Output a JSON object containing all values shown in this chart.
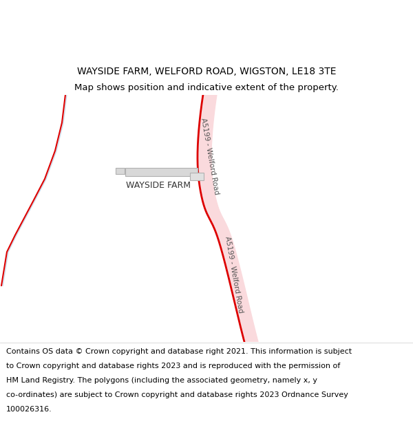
{
  "title_line1": "WAYSIDE FARM, WELFORD ROAD, WIGSTON, LE18 3TE",
  "title_line2": "Map shows position and indicative extent of the property.",
  "footer_lines": [
    "Contains OS data © Crown copyright and database right 2021. This information is subject",
    "to Crown copyright and database rights 2023 and is reproduced with the permission of",
    "HM Land Registry. The polygons (including the associated geometry, namely x, y",
    "co-ordinates) are subject to Crown copyright and database rights 2023 Ordnance Survey",
    "100026316."
  ],
  "background_color": "#ffffff",
  "road_color_fill": "#fadadd",
  "road_color_line": "#dd0000",
  "road_label": "A5199 - Welford Road",
  "farm_label": "WAYSIDE FARM",
  "title_fontsize": 10,
  "subtitle_fontsize": 9.5,
  "footer_fontsize": 8.0,
  "label_fontsize": 7.5,
  "farm_label_fontsize": 9
}
